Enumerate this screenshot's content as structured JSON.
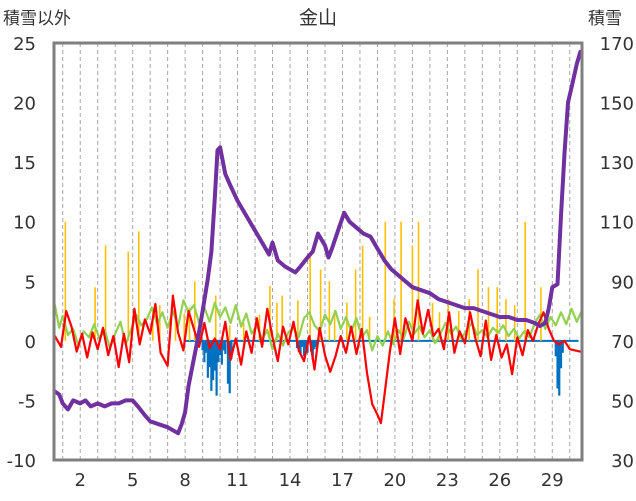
{
  "chart_data": {
    "type": "line",
    "title": "金山",
    "left_axis_label": "積雪以外",
    "right_axis_label": "積雪",
    "left_ylim": [
      -10,
      25
    ],
    "left_ticks": [
      "25",
      "20",
      "15",
      "10",
      "5",
      "0",
      "-5",
      "-10"
    ],
    "right_ylim": [
      30,
      170
    ],
    "right_ticks": [
      "170",
      "150",
      "130",
      "110",
      "90",
      "70",
      "50",
      "30"
    ],
    "xlim": [
      0.5,
      30.7
    ],
    "x_tick_values": [
      2,
      5,
      8,
      11,
      14,
      17,
      20,
      23,
      26,
      29
    ],
    "x_tick_labels": [
      "2",
      "5",
      "8",
      "11",
      "14",
      "17",
      "20",
      "23",
      "26",
      "29"
    ],
    "grid": "vertical dashed, one per day",
    "colors": {
      "snow_depth": "#7030A0",
      "temperature": "#FF0000",
      "wind": "#92D050",
      "precipitation": "#FFC000",
      "snow_change": "#0070C0"
    },
    "snow_depth_right_axis": [
      [
        0.55,
        53
      ],
      [
        0.8,
        52
      ],
      [
        1.0,
        49
      ],
      [
        1.3,
        47
      ],
      [
        1.6,
        50
      ],
      [
        2.0,
        49
      ],
      [
        2.3,
        50
      ],
      [
        2.6,
        48
      ],
      [
        3.0,
        49
      ],
      [
        3.4,
        48
      ],
      [
        3.8,
        49
      ],
      [
        4.2,
        49
      ],
      [
        4.6,
        50
      ],
      [
        5.0,
        50
      ],
      [
        5.3,
        48
      ],
      [
        5.7,
        45
      ],
      [
        6.0,
        43
      ],
      [
        6.5,
        42
      ],
      [
        7.0,
        41
      ],
      [
        7.3,
        40
      ],
      [
        7.6,
        39
      ],
      [
        7.8,
        42
      ],
      [
        8.0,
        46
      ],
      [
        8.2,
        55
      ],
      [
        8.5,
        64
      ],
      [
        8.8,
        73
      ],
      [
        9.0,
        80
      ],
      [
        9.3,
        91
      ],
      [
        9.5,
        100
      ],
      [
        9.7,
        118
      ],
      [
        9.85,
        134
      ],
      [
        10.0,
        135
      ],
      [
        10.3,
        126
      ],
      [
        10.6,
        122
      ],
      [
        11.0,
        117
      ],
      [
        11.5,
        112
      ],
      [
        12.0,
        107
      ],
      [
        12.5,
        102
      ],
      [
        12.8,
        99
      ],
      [
        13.0,
        103
      ],
      [
        13.3,
        97
      ],
      [
        13.7,
        95
      ],
      [
        14.0,
        94
      ],
      [
        14.3,
        93
      ],
      [
        14.6,
        95
      ],
      [
        15.0,
        98
      ],
      [
        15.3,
        100
      ],
      [
        15.6,
        106
      ],
      [
        15.8,
        104
      ],
      [
        16.0,
        102
      ],
      [
        16.2,
        98
      ],
      [
        16.4,
        101
      ],
      [
        16.8,
        108
      ],
      [
        17.1,
        113
      ],
      [
        17.4,
        110
      ],
      [
        17.8,
        108
      ],
      [
        18.2,
        106
      ],
      [
        18.6,
        105
      ],
      [
        19.0,
        101
      ],
      [
        19.4,
        97
      ],
      [
        19.8,
        94
      ],
      [
        20.2,
        92
      ],
      [
        20.6,
        90
      ],
      [
        21.0,
        88
      ],
      [
        21.5,
        87
      ],
      [
        22.0,
        86
      ],
      [
        22.5,
        84
      ],
      [
        23.0,
        83
      ],
      [
        23.5,
        82
      ],
      [
        24.0,
        81
      ],
      [
        24.5,
        81
      ],
      [
        25.0,
        80
      ],
      [
        25.5,
        79
      ],
      [
        26.0,
        78
      ],
      [
        26.5,
        78
      ],
      [
        27.0,
        77
      ],
      [
        27.5,
        77
      ],
      [
        28.0,
        76
      ],
      [
        28.3,
        75
      ],
      [
        28.6,
        76
      ],
      [
        28.8,
        81
      ],
      [
        29.0,
        88
      ],
      [
        29.3,
        89
      ],
      [
        29.5,
        112
      ],
      [
        29.7,
        133
      ],
      [
        29.9,
        150
      ],
      [
        30.1,
        155
      ],
      [
        30.4,
        163
      ],
      [
        30.6,
        167
      ]
    ],
    "temperature_left_axis": [
      [
        0.55,
        0.4
      ],
      [
        0.9,
        -0.5
      ],
      [
        1.2,
        2.5
      ],
      [
        1.5,
        1.2
      ],
      [
        1.8,
        -0.9
      ],
      [
        2.1,
        0.6
      ],
      [
        2.4,
        -1.4
      ],
      [
        2.7,
        0.7
      ],
      [
        3.0,
        -0.7
      ],
      [
        3.3,
        1.1
      ],
      [
        3.6,
        -1.2
      ],
      [
        3.9,
        0.4
      ],
      [
        4.2,
        -2.2
      ],
      [
        4.5,
        0.6
      ],
      [
        4.8,
        -1.8
      ],
      [
        5.1,
        2.7
      ],
      [
        5.4,
        -0.3
      ],
      [
        5.7,
        1.8
      ],
      [
        6.0,
        0.6
      ],
      [
        6.3,
        3.1
      ],
      [
        6.6,
        -1.0
      ],
      [
        7.0,
        -2.1
      ],
      [
        7.3,
        3.8
      ],
      [
        7.6,
        0.7
      ],
      [
        7.9,
        -0.8
      ],
      [
        8.2,
        2.5
      ],
      [
        8.5,
        1.0
      ],
      [
        8.8,
        -0.5
      ],
      [
        9.1,
        1.5
      ],
      [
        9.4,
        -0.6
      ],
      [
        9.7,
        0.2
      ],
      [
        10.0,
        -0.7
      ],
      [
        10.3,
        1.6
      ],
      [
        10.6,
        -1.6
      ],
      [
        10.9,
        0.2
      ],
      [
        11.2,
        -2.0
      ],
      [
        11.5,
        0.8
      ],
      [
        11.8,
        -1.0
      ],
      [
        12.1,
        1.9
      ],
      [
        12.4,
        -0.5
      ],
      [
        12.7,
        2.7
      ],
      [
        13.0,
        0.3
      ],
      [
        13.3,
        -1.7
      ],
      [
        13.6,
        1.2
      ],
      [
        13.9,
        -0.3
      ],
      [
        14.2,
        1.6
      ],
      [
        14.5,
        -0.8
      ],
      [
        14.8,
        -1.7
      ],
      [
        15.1,
        0.4
      ],
      [
        15.4,
        -2.4
      ],
      [
        15.7,
        1.1
      ],
      [
        16.0,
        -1.2
      ],
      [
        16.3,
        -2.6
      ],
      [
        16.6,
        -1.3
      ],
      [
        16.9,
        0.4
      ],
      [
        17.2,
        -1.0
      ],
      [
        17.5,
        1.2
      ],
      [
        17.8,
        -1.1
      ],
      [
        18.1,
        1.0
      ],
      [
        18.4,
        -2.7
      ],
      [
        18.7,
        -5.3
      ],
      [
        19.0,
        -6.2
      ],
      [
        19.2,
        -6.9
      ],
      [
        19.4,
        -4.6
      ],
      [
        19.7,
        -1.0
      ],
      [
        20.0,
        1.9
      ],
      [
        20.3,
        -1.1
      ],
      [
        20.6,
        1.9
      ],
      [
        21.0,
        0.0
      ],
      [
        21.3,
        3.4
      ],
      [
        21.6,
        0.6
      ],
      [
        21.9,
        2.6
      ],
      [
        22.2,
        0.4
      ],
      [
        22.5,
        1.0
      ],
      [
        22.8,
        -0.7
      ],
      [
        23.1,
        2.4
      ],
      [
        23.4,
        -1.0
      ],
      [
        23.7,
        0.8
      ],
      [
        24.0,
        -0.2
      ],
      [
        24.3,
        2.4
      ],
      [
        24.6,
        0.2
      ],
      [
        24.9,
        -1.3
      ],
      [
        25.2,
        1.7
      ],
      [
        25.5,
        -1.6
      ],
      [
        25.8,
        0.5
      ],
      [
        26.1,
        -1.4
      ],
      [
        26.4,
        -0.3
      ],
      [
        26.7,
        -2.8
      ],
      [
        27.0,
        0.3
      ],
      [
        27.3,
        -1.2
      ],
      [
        27.6,
        0.9
      ],
      [
        27.9,
        0.0
      ],
      [
        28.2,
        1.4
      ],
      [
        28.5,
        2.4
      ],
      [
        28.8,
        1.0
      ],
      [
        29.1,
        0.0
      ],
      [
        29.4,
        -0.3
      ],
      [
        29.7,
        0.0
      ],
      [
        30.0,
        -0.7
      ],
      [
        30.3,
        -0.8
      ],
      [
        30.6,
        -0.9
      ]
    ],
    "wind_left_axis": [
      [
        0.55,
        3.0
      ],
      [
        0.8,
        1.1
      ],
      [
        1.0,
        2.1
      ],
      [
        1.3,
        0.5
      ],
      [
        1.6,
        1.0
      ],
      [
        1.9,
        -0.4
      ],
      [
        2.2,
        0.8
      ],
      [
        2.5,
        0.3
      ],
      [
        2.8,
        1.4
      ],
      [
        3.1,
        0.2
      ],
      [
        3.4,
        0.9
      ],
      [
        3.7,
        -0.6
      ],
      [
        4.0,
        0.6
      ],
      [
        4.3,
        1.6
      ],
      [
        4.6,
        -0.3
      ],
      [
        4.9,
        0.9
      ],
      [
        5.2,
        2.2
      ],
      [
        5.5,
        1.3
      ],
      [
        5.8,
        1.8
      ],
      [
        6.1,
        2.8
      ],
      [
        6.4,
        1.4
      ],
      [
        6.7,
        2.4
      ],
      [
        7.0,
        1.1
      ],
      [
        7.3,
        2.5
      ],
      [
        7.6,
        1.2
      ],
      [
        7.9,
        3.4
      ],
      [
        8.2,
        2.4
      ],
      [
        8.5,
        3.0
      ],
      [
        8.8,
        1.5
      ],
      [
        9.1,
        2.8
      ],
      [
        9.4,
        1.6
      ],
      [
        9.7,
        3.2
      ],
      [
        10.0,
        2.0
      ],
      [
        10.3,
        2.8
      ],
      [
        10.6,
        1.5
      ],
      [
        10.9,
        3.0
      ],
      [
        11.2,
        1.2
      ],
      [
        11.5,
        2.3
      ],
      [
        11.8,
        0.6
      ],
      [
        12.1,
        1.3
      ],
      [
        12.4,
        0.1
      ],
      [
        12.7,
        0.9
      ],
      [
        13.0,
        -0.7
      ],
      [
        13.3,
        0.6
      ],
      [
        13.6,
        -0.4
      ],
      [
        13.9,
        0.7
      ],
      [
        14.2,
        1.1
      ],
      [
        14.5,
        0.3
      ],
      [
        14.8,
        1.9
      ],
      [
        15.1,
        2.4
      ],
      [
        15.4,
        1.3
      ],
      [
        15.7,
        0.8
      ],
      [
        16.0,
        2.2
      ],
      [
        16.3,
        1.4
      ],
      [
        16.6,
        2.5
      ],
      [
        16.9,
        1.0
      ],
      [
        17.2,
        2.0
      ],
      [
        17.5,
        0.8
      ],
      [
        17.8,
        1.9
      ],
      [
        18.1,
        0.3
      ],
      [
        18.4,
        0.9
      ],
      [
        18.7,
        -0.8
      ],
      [
        19.0,
        0.4
      ],
      [
        19.3,
        -0.4
      ],
      [
        19.6,
        0.8
      ],
      [
        19.9,
        -0.3
      ],
      [
        20.2,
        0.9
      ],
      [
        20.5,
        0.2
      ],
      [
        20.8,
        1.6
      ],
      [
        21.1,
        0.6
      ],
      [
        21.4,
        1.2
      ],
      [
        21.7,
        0.3
      ],
      [
        22.0,
        0.9
      ],
      [
        22.3,
        -0.2
      ],
      [
        22.6,
        0.6
      ],
      [
        22.9,
        1.5
      ],
      [
        23.2,
        0.6
      ],
      [
        23.5,
        1.2
      ],
      [
        23.8,
        0.2
      ],
      [
        24.1,
        0.9
      ],
      [
        24.4,
        1.5
      ],
      [
        24.7,
        0.5
      ],
      [
        25.0,
        0.9
      ],
      [
        25.3,
        0.3
      ],
      [
        25.6,
        1.1
      ],
      [
        25.9,
        0.7
      ],
      [
        26.2,
        1.3
      ],
      [
        26.5,
        0.4
      ],
      [
        26.8,
        1.0
      ],
      [
        27.1,
        0.2
      ],
      [
        27.4,
        0.8
      ],
      [
        27.7,
        0.3
      ],
      [
        28.0,
        1.5
      ],
      [
        28.3,
        2.2
      ],
      [
        28.6,
        1.0
      ],
      [
        28.9,
        2.0
      ],
      [
        29.2,
        1.3
      ],
      [
        29.5,
        2.4
      ],
      [
        29.8,
        1.4
      ],
      [
        30.1,
        2.7
      ],
      [
        30.4,
        1.6
      ],
      [
        30.65,
        2.4
      ]
    ],
    "precipitation_spikes_left_axis": [
      [
        1.15,
        10
      ],
      [
        2.85,
        4.5
      ],
      [
        3.45,
        8
      ],
      [
        4.75,
        7.5
      ],
      [
        5.35,
        9.2
      ],
      [
        6.15,
        2.8
      ],
      [
        6.55,
        3.0
      ],
      [
        7.45,
        2.6
      ],
      [
        7.95,
        2.3
      ],
      [
        8.25,
        2.8
      ],
      [
        8.55,
        5.0
      ],
      [
        9.75,
        3.8
      ],
      [
        10.55,
        1.3
      ],
      [
        11.35,
        1.5
      ],
      [
        12.25,
        2.2
      ],
      [
        12.85,
        4.6
      ],
      [
        13.25,
        3.2
      ],
      [
        13.55,
        3.8
      ],
      [
        14.45,
        3.4
      ],
      [
        15.15,
        7.0
      ],
      [
        15.75,
        6.0
      ],
      [
        16.25,
        5.0
      ],
      [
        16.55,
        2.6
      ],
      [
        17.25,
        3.2
      ],
      [
        17.75,
        6.0
      ],
      [
        18.15,
        8.0
      ],
      [
        18.55,
        2.0
      ],
      [
        19.45,
        10
      ],
      [
        19.95,
        3.5
      ],
      [
        20.35,
        10
      ],
      [
        21.0,
        8.0
      ],
      [
        21.35,
        10
      ],
      [
        22.15,
        3.2
      ],
      [
        22.55,
        2.4
      ],
      [
        23.05,
        3.5
      ],
      [
        23.65,
        2.5
      ],
      [
        24.25,
        3.5
      ],
      [
        24.75,
        6.0
      ],
      [
        25.35,
        4.5
      ],
      [
        25.85,
        4.5
      ],
      [
        26.35,
        3.5
      ],
      [
        26.85,
        3.0
      ],
      [
        27.45,
        10
      ],
      [
        28.35,
        4.5
      ]
    ],
    "snow_change_bars_left_axis": [
      [
        9.0,
        -0.8
      ],
      [
        9.1,
        -1.8
      ],
      [
        9.2,
        -1.0
      ],
      [
        9.3,
        -3.1
      ],
      [
        9.4,
        -2.2
      ],
      [
        9.5,
        -4.2
      ],
      [
        9.6,
        -3.3
      ],
      [
        9.7,
        -2.5
      ],
      [
        9.8,
        -4.6
      ],
      [
        9.9,
        -1.8
      ],
      [
        10.0,
        -1.2
      ],
      [
        10.1,
        -2.0
      ],
      [
        10.2,
        -0.8
      ],
      [
        10.3,
        -1.1
      ],
      [
        10.45,
        -3.6
      ],
      [
        10.55,
        -4.4
      ],
      [
        10.65,
        -1.5
      ],
      [
        14.4,
        -0.6
      ],
      [
        14.5,
        -0.9
      ],
      [
        14.6,
        -1.1
      ],
      [
        14.7,
        -0.5
      ],
      [
        14.8,
        -1.3
      ],
      [
        14.9,
        -0.7
      ],
      [
        15.0,
        -1.0
      ],
      [
        15.2,
        -0.9
      ],
      [
        15.3,
        -1.6
      ],
      [
        15.4,
        -0.7
      ],
      [
        15.5,
        -0.5
      ],
      [
        29.2,
        -1.3
      ],
      [
        29.3,
        -4.0
      ],
      [
        29.4,
        -4.6
      ],
      [
        29.5,
        -2.3
      ],
      [
        29.6,
        -1.0
      ]
    ]
  }
}
